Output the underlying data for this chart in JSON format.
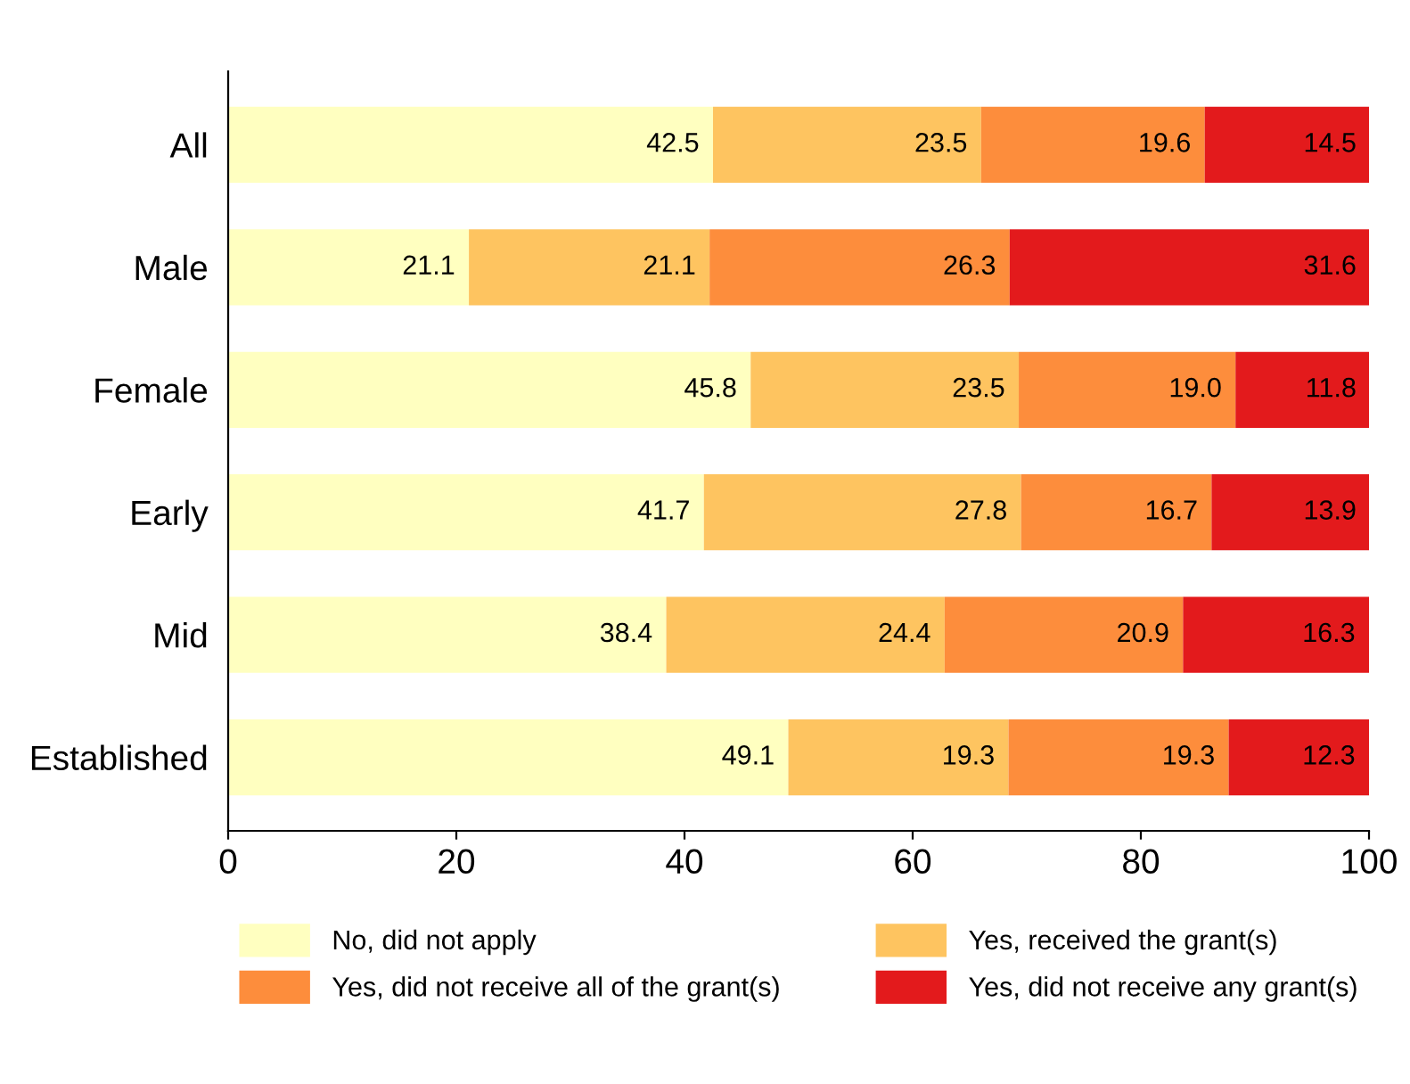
{
  "chart_data": {
    "type": "bar",
    "orientation": "horizontal",
    "stacked": true,
    "legend": "bottom",
    "grid": false,
    "categories": [
      "All",
      "Male",
      "Female",
      "Early",
      "Mid",
      "Established"
    ],
    "xlim": [
      0,
      100
    ],
    "xticks": [
      0,
      20,
      40,
      60,
      80,
      100
    ],
    "series": [
      {
        "name": "No, did not apply",
        "color": "#ffffc0",
        "values": [
          42.5,
          21.1,
          45.8,
          41.7,
          38.4,
          49.1
        ],
        "value_labels": [
          "42.5",
          "21.1",
          "45.8",
          "41.7",
          "38.4",
          "49.1"
        ]
      },
      {
        "name": "Yes, received the grant(s)",
        "color": "#fec460",
        "values": [
          23.5,
          21.1,
          23.5,
          27.8,
          24.4,
          19.3
        ],
        "value_labels": [
          "23.5",
          "21.1",
          "23.5",
          "27.8",
          "24.4",
          "19.3"
        ]
      },
      {
        "name": "Yes, did not receive all of the grant(s)",
        "color": "#fd8d3c",
        "values": [
          19.6,
          26.3,
          19.0,
          16.7,
          20.9,
          19.3
        ],
        "value_labels": [
          "19.6",
          "26.3",
          "19.0",
          "16.7",
          "20.9",
          "19.3"
        ]
      },
      {
        "name": "Yes, did not receive any grant(s)",
        "color": "#e31a1c",
        "values": [
          14.5,
          31.6,
          11.8,
          13.9,
          16.3,
          12.3
        ],
        "value_labels": [
          "14.5",
          "31.6",
          "11.8",
          "13.9",
          "16.3",
          "12.3"
        ]
      }
    ]
  }
}
